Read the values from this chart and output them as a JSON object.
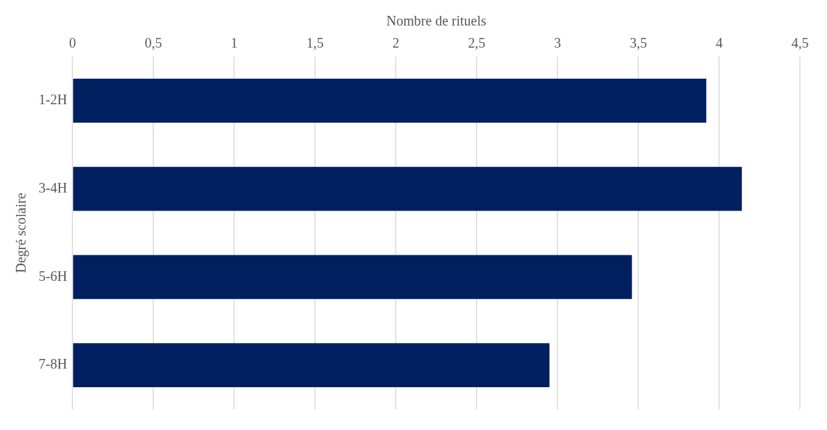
{
  "chart_data": {
    "type": "bar",
    "orientation": "horizontal",
    "xlabel": "Nombre de rituels",
    "ylabel": "Degré scolaire",
    "categories": [
      "1-2H",
      "3-4H",
      "5-6H",
      "7-8H"
    ],
    "values": [
      3.92,
      4.14,
      3.46,
      2.95
    ],
    "color": "#002060",
    "xlim": [
      0,
      4.5
    ],
    "xticks": [
      0,
      {
        "value": 0.5,
        "label": "0,5"
      },
      1,
      {
        "value": 1.5,
        "label": "1,5"
      },
      2,
      {
        "value": 2.5,
        "label": "2,5"
      },
      3,
      {
        "value": 3.5,
        "label": "3,5"
      },
      4,
      {
        "value": 4.5,
        "label": "4,5"
      }
    ],
    "grid": "x",
    "legend": false
  }
}
